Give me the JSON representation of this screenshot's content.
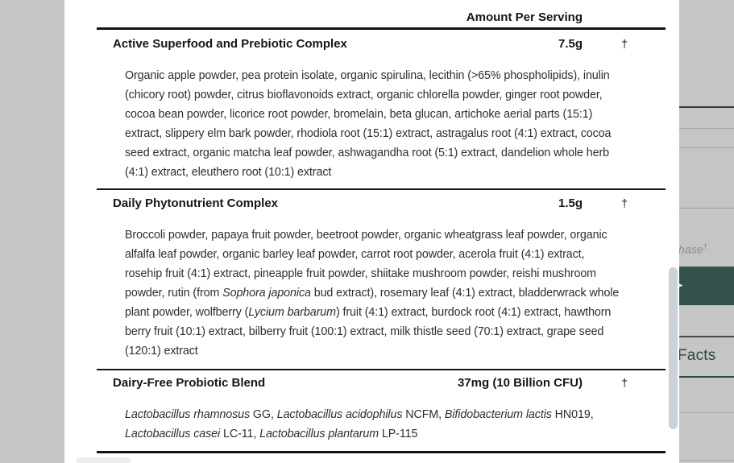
{
  "modal": {
    "supplement_table": {
      "amount_header": "Amount Per Serving",
      "rows": [
        {
          "name": "Active Superfood and Prebiotic Complex",
          "amount": "7.5g",
          "daily_value": "†",
          "ingredients": [
            {
              "t": "Organic apple powder, pea protein isolate, organic spirulina, lecithin (>65% phospholipids), inulin (chicory root) powder, citrus bioflavonoids extract, organic chlorella powder, ginger root powder, cocoa bean powder, licorice root powder, bromelain, beta glucan, artichoke aerial parts (15:1) extract, slippery elm bark powder, rhodiola root (15:1) extract, astragalus root (4:1) extract, cocoa seed extract, organic matcha leaf powder, ashwagandha root (5:1) extract, dandelion whole herb (4:1) extract, eleuthero root (10:1) extract",
              "i": false
            }
          ]
        },
        {
          "name": "Daily Phytonutrient Complex",
          "amount": "1.5g",
          "daily_value": "†",
          "ingredients": [
            {
              "t": "Broccoli powder, papaya fruit powder, beetroot powder, organic wheatgrass leaf powder, organic alfalfa leaf powder, organic barley leaf powder, carrot root powder, acerola fruit (4:1) extract, rosehip fruit (4:1) extract, pineapple fruit powder, shiitake mushroom powder, reishi mushroom powder, rutin (from ",
              "i": false
            },
            {
              "t": "Sophora japonica",
              "i": true
            },
            {
              "t": " bud extract), rosemary leaf (4:1) extract, bladderwrack whole plant powder, wolfberry (",
              "i": false
            },
            {
              "t": "Lycium barbarum",
              "i": true
            },
            {
              "t": ") fruit (4:1) extract, burdock root (4:1) extract, hawthorn berry fruit (10:1) extract, bilberry fruit (100:1) extract, milk thistle seed (70:1) extract, grape seed (120:1) extract",
              "i": false
            }
          ]
        },
        {
          "name": "Dairy-Free Probiotic Blend",
          "amount": "37mg (10 Billion CFU)",
          "daily_value": "†",
          "ingredients": [
            {
              "t": "Lactobacillus rhamnosus",
              "i": true
            },
            {
              "t": " GG, ",
              "i": false
            },
            {
              "t": "Lactobacillus acidophilus",
              "i": true
            },
            {
              "t": " NCFM, ",
              "i": false
            },
            {
              "t": "Bifidobacterium lactis",
              "i": true
            },
            {
              "t": " HN019, ",
              "i": false
            },
            {
              "t": "Lactobacillus casei",
              "i": true
            },
            {
              "t": " LC-11, ",
              "i": false
            },
            {
              "t": "Lactobacillus plantarum",
              "i": true
            },
            {
              "t": " LP-115",
              "i": false
            }
          ]
        }
      ]
    }
  },
  "background_page": {
    "clipped_text": "hase",
    "clipped_text_dagger": "†",
    "facts_label": "Facts",
    "button_arrow_icon": "➤"
  },
  "colors": {
    "overlay_gray": "#c5c5c5",
    "accent_teal": "#2d4a46",
    "button_teal": "#35514d",
    "rule_black": "#121212",
    "scrollbar_thumb": "#cbd2d8"
  }
}
